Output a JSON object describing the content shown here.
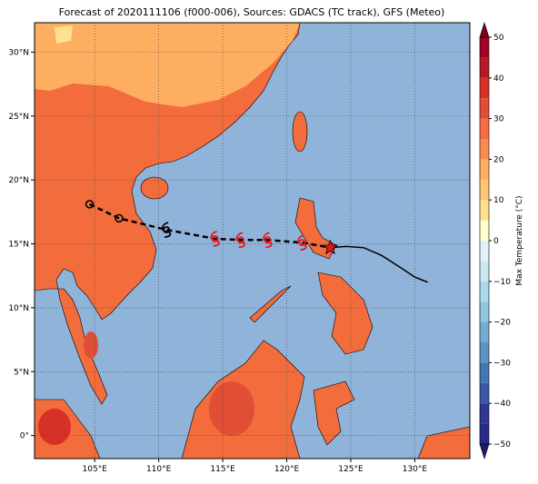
{
  "title": "Forecast of 2020111106 (f000-006), Sources: GDACS (TC track), GFS (Meteo)",
  "map": {
    "xlim": [
      100.3,
      134.3
    ],
    "ylim": [
      -1.8,
      32.3
    ],
    "xticks": [
      {
        "value": 105,
        "label": "105°E"
      },
      {
        "value": 110,
        "label": "110°E"
      },
      {
        "value": 115,
        "label": "115°E"
      },
      {
        "value": 120,
        "label": "120°E"
      },
      {
        "value": 125,
        "label": "125°E"
      },
      {
        "value": 130,
        "label": "130°E"
      }
    ],
    "yticks": [
      {
        "value": 0,
        "label": "0°"
      },
      {
        "value": 5,
        "label": "5°N"
      },
      {
        "value": 10,
        "label": "10°N"
      },
      {
        "value": 15,
        "label": "15°N"
      },
      {
        "value": 20,
        "label": "20°N"
      },
      {
        "value": 25,
        "label": "25°N"
      },
      {
        "value": 30,
        "label": "30°N"
      }
    ],
    "grid": true
  },
  "track": {
    "forecast": {
      "lon": [
        104.6,
        106.9,
        110.6,
        114.4,
        116.4,
        118.5,
        121.2,
        123.4
      ],
      "lat": [
        18.1,
        17.0,
        16.1,
        15.4,
        15.3,
        15.3,
        15.1,
        14.7
      ]
    },
    "past": {
      "lon": [
        123.4,
        124.6,
        126.0,
        127.4,
        128.8,
        130.0,
        131.0
      ],
      "lat": [
        14.7,
        14.8,
        14.7,
        14.1,
        13.2,
        12.4,
        12.0
      ]
    }
  },
  "colorbar": {
    "label": "Max Temperature (°C)",
    "lim": [
      -50,
      50
    ],
    "step": 5,
    "colors": [
      "#262b87",
      "#313695",
      "#3d58a6",
      "#4575b4",
      "#5f93c4",
      "#74add1",
      "#92c5de",
      "#abd9e9",
      "#c9e8f1",
      "#e0f3f8",
      "#ffffd0",
      "#fee090",
      "#fdc576",
      "#fdae61",
      "#f88d52",
      "#f46d43",
      "#e04e36",
      "#d73027",
      "#b7182a",
      "#a50026"
    ],
    "under": "#1a1f6e",
    "over": "#800020",
    "ticks": [
      {
        "value": -50,
        "label": "−50"
      },
      {
        "value": -40,
        "label": "−40"
      },
      {
        "value": -30,
        "label": "−30"
      },
      {
        "value": -20,
        "label": "−20"
      },
      {
        "value": -10,
        "label": "−10"
      },
      0,
      10,
      20,
      30,
      40,
      50
    ]
  }
}
